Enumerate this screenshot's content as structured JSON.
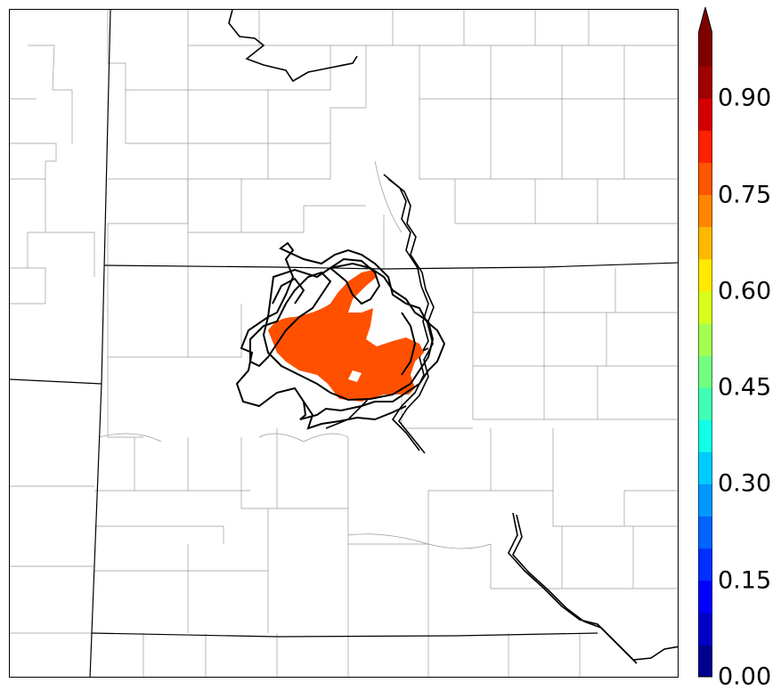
{
  "colorbar": {
    "ticks": [
      "0.00",
      "0.15",
      "0.30",
      "0.45",
      "0.60",
      "0.75",
      "0.90"
    ],
    "colors": [
      "#00008f",
      "#0000c8",
      "#0000ff",
      "#0030ff",
      "#0064ff",
      "#0098ff",
      "#00ccff",
      "#10ffe6",
      "#40ffb4",
      "#72ff82",
      "#a4ff50",
      "#d6ff1e",
      "#ffea00",
      "#ffb800",
      "#ff8600",
      "#ff5400",
      "#ff2200",
      "#d40000",
      "#a00000",
      "#800000"
    ],
    "extend_color": "#800000"
  },
  "map": {
    "fill_color": "#ff5000",
    "contour_color": "#000000",
    "state_line_color": "#000000",
    "county_line_color": "#9a9a9a",
    "river_color": "#000000"
  }
}
